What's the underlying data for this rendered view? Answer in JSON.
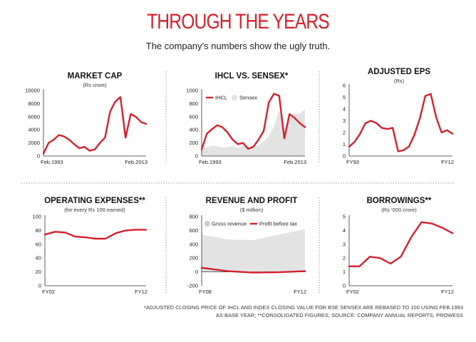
{
  "header": {
    "title": "THROUGH THE YEARS",
    "subtitle": "The company’s numbers show the ugly truth."
  },
  "footnote": {
    "line1": "*ADJUSTED CLOSING PRICE OF IHCL AND INDEX CLOSING VALUE FOR BSE SENSEX ARE REBASED TO 100 USING FEB.1993",
    "line2": "AS BASE YEAR; **CONSOLIDATED FIGURES; SOURCE: COMPANY ANNUAL REPORTS, PROWESS"
  },
  "colors": {
    "accent": "#d4212e",
    "area": "#e3e3e3",
    "divider": "#9a9a9a"
  },
  "chart_data": [
    {
      "id": "market-cap",
      "type": "line",
      "title": "MARKET CAP",
      "subtitle": "(Rs crore)",
      "xlabel_ticks": [
        "Feb.1993",
        "Feb.2013"
      ],
      "ylim": [
        0,
        10000
      ],
      "yticks": [
        0,
        2000,
        4000,
        6000,
        8000,
        10000
      ],
      "series": [
        {
          "values": [
            400,
            2000,
            2500,
            3200,
            3000,
            2500,
            1800,
            1200,
            1400,
            800,
            1000,
            2000,
            2800,
            6800,
            8300,
            9000,
            2800,
            6400,
            6000,
            5200,
            4900
          ]
        }
      ]
    },
    {
      "id": "ihcl-vs-sensex",
      "type": "line",
      "title": "IHCL VS. SENSEX*",
      "xlabel_ticks": [
        "Feb.1993",
        "Feb.2013"
      ],
      "ylim": [
        0,
        1000
      ],
      "yticks": [
        0,
        200,
        400,
        600,
        800,
        1000
      ],
      "legend": [
        "IHCL",
        "Sensex"
      ],
      "series": [
        {
          "name": "IHCL",
          "values": [
            100,
            340,
            410,
            470,
            440,
            360,
            250,
            180,
            200,
            110,
            140,
            250,
            380,
            820,
            950,
            920,
            270,
            640,
            580,
            500,
            440
          ]
        },
        {
          "name": "Sensex",
          "values": [
            100,
            130,
            160,
            150,
            130,
            140,
            150,
            120,
            160,
            140,
            120,
            160,
            220,
            300,
            450,
            700,
            400,
            600,
            650,
            640,
            720
          ]
        }
      ]
    },
    {
      "id": "adjusted-eps",
      "type": "line",
      "title": "ADJUSTED EPS",
      "subtitle": "(Rs)",
      "xlabel_ticks": [
        "FY93",
        "FY12"
      ],
      "ylim": [
        0,
        6
      ],
      "yticks": [
        0,
        1,
        2,
        3,
        4,
        5,
        6
      ],
      "series": [
        {
          "values": [
            0.8,
            1.2,
            1.9,
            2.8,
            3.0,
            2.8,
            2.4,
            2.3,
            2.4,
            0.4,
            0.5,
            0.8,
            1.8,
            3.2,
            5.1,
            5.3,
            3.3,
            2.0,
            2.2,
            1.9
          ]
        }
      ]
    },
    {
      "id": "operating-expenses",
      "type": "line",
      "title": "OPERATING EXPENSES**",
      "subtitle": "(for every Rs 100 earned)",
      "xlabel_ticks": [
        "FY02",
        "FY12"
      ],
      "ylim": [
        0,
        100
      ],
      "yticks": [
        0,
        20,
        40,
        60,
        80,
        100
      ],
      "series": [
        {
          "values": [
            74,
            78,
            77,
            71,
            70,
            68,
            68,
            76,
            80,
            81,
            81
          ]
        }
      ]
    },
    {
      "id": "revenue-and-profit",
      "type": "area",
      "title": "REVENUE AND PROFIT",
      "subtitle": "($ million)",
      "xlabel_ticks": [
        "FY08",
        "FY12"
      ],
      "ylim": [
        -200,
        800
      ],
      "yticks": [
        -200,
        0,
        200,
        400,
        600,
        800
      ],
      "legend": [
        "Gross revenue",
        "Profit before tax"
      ],
      "series": [
        {
          "name": "Gross revenue",
          "values": [
            540,
            470,
            460,
            540,
            620
          ]
        },
        {
          "name": "Profit before tax",
          "values": [
            60,
            10,
            -10,
            -5,
            10
          ]
        }
      ]
    },
    {
      "id": "borrowings",
      "type": "line",
      "title": "BORROWINGS**",
      "subtitle": "(Rs ’000 crore)",
      "xlabel_ticks": [
        "FY02",
        "FY12"
      ],
      "ylim": [
        0,
        5
      ],
      "yticks": [
        0,
        1,
        2,
        3,
        4,
        5
      ],
      "series": [
        {
          "values": [
            1.4,
            1.4,
            2.1,
            2.0,
            1.6,
            2.1,
            3.5,
            4.6,
            4.5,
            4.2,
            3.8
          ]
        }
      ]
    }
  ]
}
